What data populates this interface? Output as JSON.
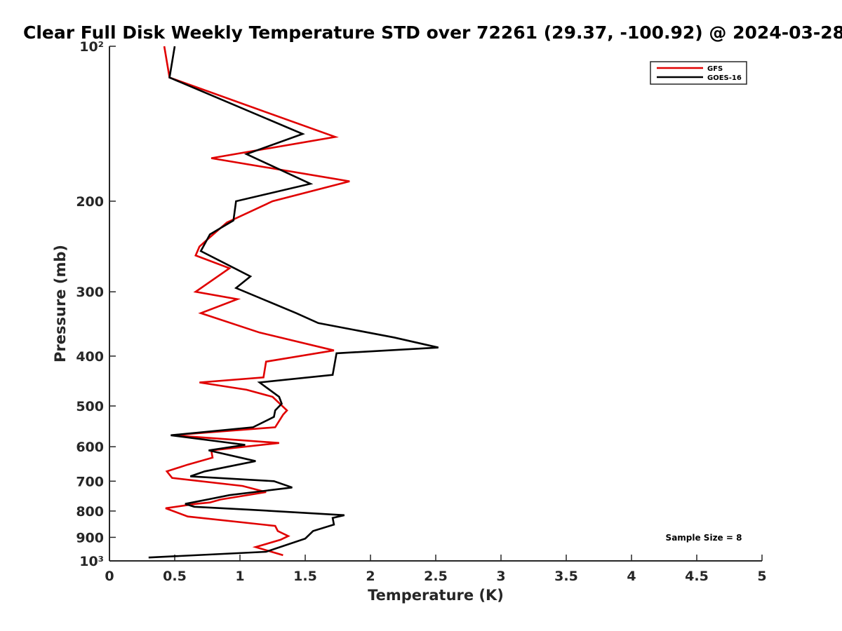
{
  "chart_data": {
    "type": "line",
    "title": "Clear Full Disk Weekly Temperature STD over 72261 (29.37, -100.92) @ 2024-03-28",
    "xlabel": "Temperature (K)",
    "ylabel": "Pressure (mb)",
    "xlim": [
      0,
      5
    ],
    "ylim": [
      100,
      1000
    ],
    "y_scale": "log",
    "y_reversed": true,
    "grid": false,
    "legend_position": "top-right",
    "x_ticks": [
      0,
      0.5,
      1,
      1.5,
      2,
      2.5,
      3,
      3.5,
      4,
      4.5,
      5
    ],
    "x_tick_labels": [
      "0",
      "0.5",
      "1",
      "1.5",
      "2",
      "2.5",
      "3",
      "3.5",
      "4",
      "4.5",
      "5"
    ],
    "y_ticks": [
      100,
      200,
      300,
      400,
      500,
      600,
      700,
      800,
      900,
      1000
    ],
    "y_tick_labels": [
      "10²",
      "200",
      "300",
      "400",
      "500",
      "600",
      "700",
      "800",
      "900",
      "10³"
    ],
    "annotation": "Sample Size = 8",
    "series": [
      {
        "name": "GFS",
        "color": "#e00000",
        "x": [
          0.42,
          0.46,
          1.73,
          0.78,
          1.84,
          1.25,
          0.9,
          0.77,
          0.69,
          0.66,
          0.92,
          0.66,
          0.98,
          0.7,
          1.15,
          1.72,
          1.2,
          1.18,
          0.69,
          1.05,
          1.25,
          1.36,
          1.33,
          1.27,
          0.48,
          1.3,
          0.78,
          0.79,
          0.6,
          0.44,
          0.48,
          1.02,
          1.2,
          0.85,
          0.77,
          0.66,
          0.43,
          0.6,
          1.27,
          1.29,
          1.37,
          1.31,
          1.12,
          1.33
        ],
        "y": [
          100,
          115,
          150,
          165,
          183,
          200,
          220,
          235,
          245,
          255,
          270,
          300,
          310,
          330,
          360,
          390,
          410,
          440,
          450,
          465,
          480,
          510,
          520,
          550,
          570,
          590,
          610,
          630,
          650,
          670,
          690,
          715,
          735,
          760,
          770,
          775,
          790,
          820,
          855,
          875,
          895,
          910,
          940,
          975
        ]
      },
      {
        "name": "GOES-16",
        "color": "#000000",
        "x": [
          0.5,
          0.46,
          1.48,
          1.05,
          1.54,
          0.97,
          0.95,
          0.77,
          0.7,
          1.08,
          0.97,
          1.43,
          1.6,
          2.18,
          2.52,
          1.74,
          1.71,
          1.15,
          1.3,
          1.32,
          1.27,
          1.26,
          1.1,
          0.47,
          1.04,
          0.76,
          1.12,
          0.73,
          0.62,
          1.26,
          1.4,
          0.92,
          0.75,
          0.58,
          0.65,
          1.07,
          1.8,
          1.71,
          1.72,
          1.56,
          1.5,
          1.2,
          0.3
        ],
        "y": [
          100,
          115,
          148,
          162,
          185,
          200,
          218,
          232,
          250,
          280,
          295,
          330,
          345,
          368,
          385,
          395,
          435,
          450,
          480,
          495,
          510,
          525,
          550,
          570,
          595,
          610,
          640,
          670,
          685,
          700,
          720,
          745,
          760,
          775,
          785,
          795,
          815,
          825,
          850,
          875,
          905,
          960,
          985
        ]
      }
    ]
  }
}
